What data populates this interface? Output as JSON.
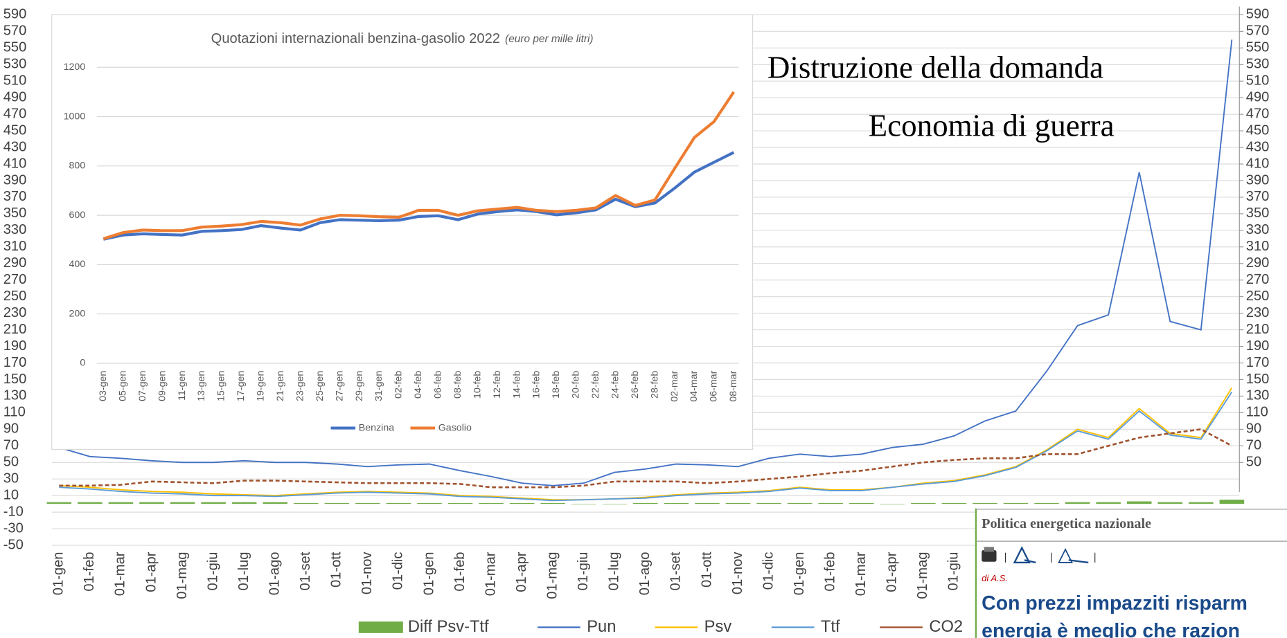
{
  "chart_data": [
    {
      "type": "line",
      "categories": [
        "01-gen",
        "01-feb",
        "01-mar",
        "01-apr",
        "01-mag",
        "01-giu",
        "01-lug",
        "01-ago",
        "01-set",
        "01-ott",
        "01-nov",
        "01-dic",
        "01-gen",
        "01-feb",
        "01-mar",
        "01-apr",
        "01-mag",
        "01-giu",
        "01-lug",
        "01-ago",
        "01-set",
        "01-ott",
        "01-nov",
        "01-dic",
        "01-gen",
        "01-feb",
        "01-mar",
        "01-apr",
        "01-mag",
        "01-giu",
        null,
        null,
        null,
        null,
        null,
        null,
        null,
        null,
        null
      ],
      "series": [
        {
          "name": "Diff Psv-Ttf",
          "type": "bar",
          "color": "#70ad47",
          "values": [
            2,
            2,
            2,
            2,
            2,
            2,
            2,
            2,
            1,
            1,
            1,
            1,
            1,
            1,
            1,
            1,
            1,
            0,
            0,
            1,
            1,
            1,
            1,
            1,
            1,
            1,
            1,
            0,
            1,
            1,
            1,
            1,
            1,
            2,
            2,
            3,
            2,
            2,
            5
          ]
        },
        {
          "name": "Pun",
          "color": "#4472c4",
          "values": [
            68,
            57,
            55,
            52,
            50,
            50,
            52,
            50,
            50,
            48,
            45,
            47,
            48,
            40,
            33,
            25,
            22,
            25,
            38,
            42,
            48,
            47,
            45,
            55,
            60,
            57,
            60,
            68,
            72,
            82,
            100,
            112,
            160,
            215,
            228,
            400,
            220,
            210,
            560
          ]
        },
        {
          "name": "Psv",
          "color": "#ffc000",
          "values": [
            22,
            20,
            17,
            15,
            14,
            12,
            11,
            10,
            12,
            14,
            15,
            14,
            13,
            10,
            9,
            7,
            5,
            5,
            6,
            8,
            11,
            13,
            14,
            16,
            20,
            17,
            17,
            20,
            25,
            28,
            35,
            45,
            65,
            90,
            80,
            115,
            85,
            80,
            140
          ]
        },
        {
          "name": "Ttf",
          "color": "#5b9bd5",
          "values": [
            20,
            18,
            15,
            13,
            12,
            10,
            10,
            9,
            11,
            13,
            14,
            13,
            12,
            9,
            8,
            6,
            4,
            5,
            6,
            7,
            10,
            12,
            13,
            15,
            19,
            16,
            16,
            20,
            24,
            27,
            34,
            44,
            64,
            88,
            78,
            112,
            83,
            78,
            135
          ]
        },
        {
          "name": "CO2",
          "color": "#a0522d",
          "dashed": true,
          "values": [
            22,
            22,
            23,
            27,
            26,
            25,
            28,
            28,
            27,
            26,
            25,
            25,
            25,
            24,
            20,
            20,
            20,
            22,
            27,
            27,
            27,
            25,
            27,
            30,
            33,
            37,
            40,
            45,
            50,
            53,
            55,
            55,
            60,
            60,
            70,
            80,
            85,
            90,
            70
          ]
        }
      ],
      "ylim": [
        -50,
        590
      ],
      "yticks": [
        -50,
        -30,
        -10,
        10,
        30,
        50,
        70,
        90,
        110,
        130,
        150,
        170,
        190,
        210,
        230,
        250,
        270,
        290,
        310,
        330,
        350,
        370,
        390,
        410,
        430,
        450,
        470,
        490,
        510,
        530,
        550,
        570,
        590
      ],
      "y2lim": [
        -50,
        590
      ],
      "y2ticks": [
        50,
        70,
        90,
        110,
        130,
        150,
        170,
        190,
        210,
        230,
        250,
        270,
        290,
        310,
        330,
        350,
        370,
        390,
        410,
        430,
        450,
        470,
        490,
        510,
        530,
        550,
        570,
        590
      ],
      "grid": true,
      "legend": "bottom"
    },
    {
      "type": "line",
      "title": "Quotazioni internazionali benzina-gasolio 2022",
      "subtitle": "(euro per mille litri)",
      "categories": [
        "03-gen",
        "05-gen",
        "07-gen",
        "09-gen",
        "11-gen",
        "13-gen",
        "15-gen",
        "17-gen",
        "19-gen",
        "21-gen",
        "23-gen",
        "25-gen",
        "27-gen",
        "29-gen",
        "31-gen",
        "02-feb",
        "04-feb",
        "06-feb",
        "08-feb",
        "10-feb",
        "12-feb",
        "14-feb",
        "16-feb",
        "18-feb",
        "20-feb",
        "22-feb",
        "24-feb",
        "26-feb",
        "28-feb",
        "02-mar",
        "04-mar",
        "06-mar",
        "08-mar"
      ],
      "series": [
        {
          "name": "Benzina",
          "color": "#4472c4",
          "values": [
            503,
            520,
            525,
            522,
            520,
            535,
            538,
            542,
            558,
            548,
            540,
            570,
            582,
            580,
            578,
            580,
            595,
            598,
            582,
            605,
            615,
            622,
            615,
            602,
            610,
            622,
            665,
            635,
            650,
            710,
            775,
            815,
            855
          ]
        },
        {
          "name": "Gasolio",
          "color": "#ed7d31",
          "values": [
            505,
            530,
            540,
            538,
            538,
            552,
            556,
            562,
            575,
            570,
            560,
            585,
            600,
            598,
            594,
            592,
            620,
            620,
            600,
            618,
            625,
            632,
            620,
            615,
            620,
            630,
            680,
            640,
            662,
            790,
            915,
            980,
            1100
          ]
        }
      ],
      "ylim": [
        0,
        1200
      ],
      "yticks": [
        0,
        200,
        400,
        600,
        800,
        1000,
        1200
      ],
      "grid": true,
      "legend": "bottom"
    }
  ],
  "annotations": [
    "Distruzione della domanda",
    "Economia di guerra"
  ],
  "article": {
    "section": "Politica energetica nazionale",
    "byline": "di A.S.",
    "headline": [
      "Con prezzi impazziti risparm",
      "energia è meglio che razion"
    ]
  }
}
